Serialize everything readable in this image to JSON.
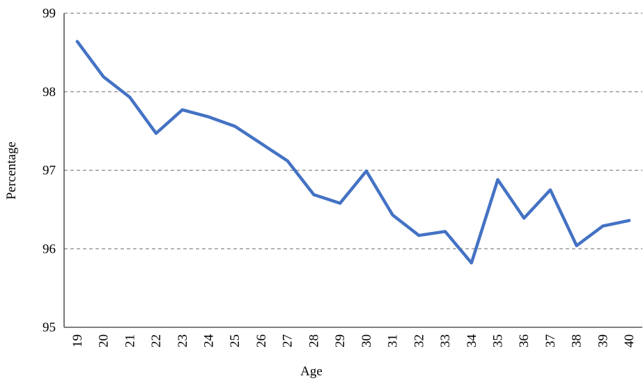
{
  "chart_data": {
    "type": "line",
    "x_label": "Age",
    "y_label": "Percentage",
    "categories": [
      "19",
      "20",
      "21",
      "22",
      "23",
      "24",
      "25",
      "26",
      "27",
      "28",
      "29",
      "30",
      "31",
      "32",
      "33",
      "34",
      "35",
      "36",
      "37",
      "38",
      "39",
      "40"
    ],
    "series": [
      {
        "color": "#4472c4",
        "values": [
          98.64,
          98.19,
          97.93,
          97.47,
          97.77,
          97.68,
          97.56,
          97.34,
          97.12,
          96.69,
          96.58,
          96.99,
          96.43,
          96.17,
          96.22,
          95.82,
          96.88,
          96.39,
          96.75,
          96.04,
          96.29,
          96.36
        ]
      }
    ],
    "ylim": [
      95,
      99
    ],
    "yticks": [
      95,
      96,
      97,
      98,
      99
    ],
    "grid": true
  }
}
